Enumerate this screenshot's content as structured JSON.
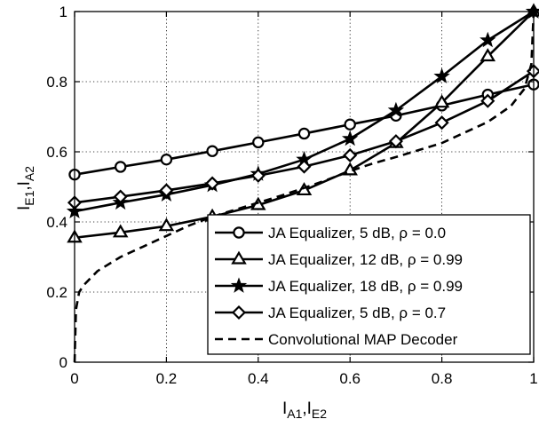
{
  "chart_data": {
    "type": "line",
    "xlabel": {
      "main": "I",
      "sub1": "A1",
      "sep": ",",
      "main2": "I",
      "sub2": "E2"
    },
    "ylabel": {
      "main": "I",
      "sub1": "E1",
      "sep": ",",
      "main2": "I",
      "sub2": "A2"
    },
    "xlim": [
      0,
      1
    ],
    "ylim": [
      0,
      1
    ],
    "xticks": [
      0,
      0.2,
      0.4,
      0.6,
      0.8,
      1
    ],
    "yticks": [
      0,
      0.2,
      0.4,
      0.6,
      0.8,
      1
    ],
    "xtick_labels": [
      "0",
      "0.2",
      "0.4",
      "0.6",
      "0.8",
      "1"
    ],
    "ytick_labels": [
      "0",
      "0.2",
      "0.4",
      "0.6",
      "0.8",
      "1"
    ],
    "grid": true,
    "legend_position": "bottom-right",
    "series": [
      {
        "name": "JA Equalizer, 5 dB, ρ = 0.0",
        "marker": "circle",
        "line": "solid",
        "x": [
          0,
          0.1,
          0.2,
          0.3,
          0.4,
          0.5,
          0.6,
          0.7,
          0.8,
          0.9,
          1.0
        ],
        "y": [
          0.535,
          0.557,
          0.578,
          0.602,
          0.627,
          0.652,
          0.678,
          0.703,
          0.732,
          0.763,
          0.792
        ]
      },
      {
        "name": "JA Equalizer, 12 dB, ρ = 0.99",
        "marker": "triangle",
        "line": "solid",
        "x": [
          0,
          0.1,
          0.2,
          0.3,
          0.4,
          0.5,
          0.6,
          0.7,
          0.8,
          0.9,
          1.0
        ],
        "y": [
          0.355,
          0.37,
          0.388,
          0.415,
          0.448,
          0.49,
          0.547,
          0.625,
          0.74,
          0.872,
          1.0
        ]
      },
      {
        "name": "JA Equalizer, 18 dB, ρ = 0.99",
        "marker": "star",
        "line": "solid",
        "x": [
          0,
          0.1,
          0.2,
          0.3,
          0.4,
          0.5,
          0.6,
          0.7,
          0.8,
          0.9,
          1.0
        ],
        "y": [
          0.43,
          0.455,
          0.478,
          0.505,
          0.537,
          0.578,
          0.637,
          0.718,
          0.815,
          0.918,
          1.0
        ]
      },
      {
        "name": "JA Equalizer, 5 dB, ρ = 0.7",
        "marker": "diamond",
        "line": "solid",
        "x": [
          0,
          0.1,
          0.2,
          0.3,
          0.4,
          0.5,
          0.6,
          0.7,
          0.8,
          0.9,
          1.0
        ],
        "y": [
          0.455,
          0.472,
          0.49,
          0.51,
          0.532,
          0.558,
          0.59,
          0.63,
          0.683,
          0.745,
          0.83
        ]
      },
      {
        "name": "Convolutional MAP Decoder",
        "marker": "none",
        "line": "dashed",
        "x": [
          0,
          0.003,
          0.01,
          0.02,
          0.05,
          0.1,
          0.15,
          0.2,
          0.25,
          0.3,
          0.35,
          0.4,
          0.45,
          0.5,
          0.55,
          0.6,
          0.65,
          0.7,
          0.75,
          0.8,
          0.85,
          0.9,
          0.95,
          0.98,
          0.995,
          1.0
        ],
        "y": [
          0,
          0.15,
          0.2,
          0.22,
          0.26,
          0.3,
          0.33,
          0.36,
          0.39,
          0.415,
          0.435,
          0.455,
          0.475,
          0.497,
          0.52,
          0.545,
          0.567,
          0.585,
          0.605,
          0.625,
          0.655,
          0.685,
          0.73,
          0.78,
          0.85,
          1.0
        ]
      }
    ]
  }
}
